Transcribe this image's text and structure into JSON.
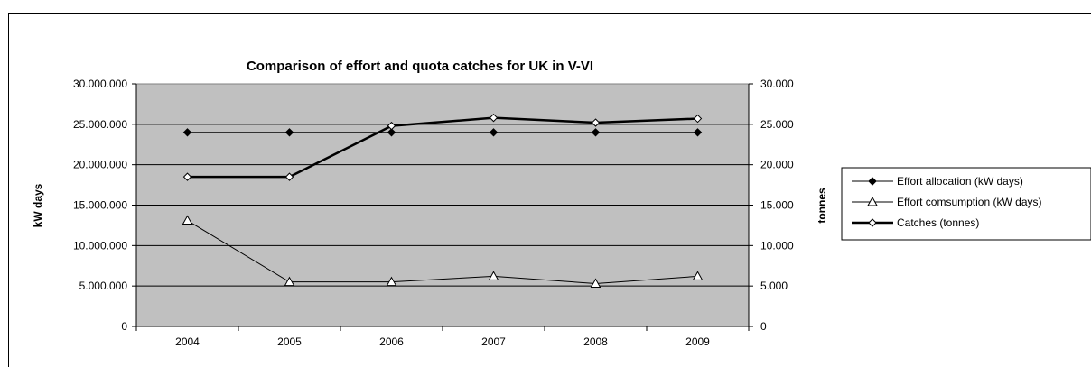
{
  "chart_data": {
    "type": "line",
    "title": "Comparison of effort and quota catches for UK in V-VI",
    "categories": [
      "2004",
      "2005",
      "2006",
      "2007",
      "2008",
      "2009"
    ],
    "y_left": {
      "label": "kW days",
      "ylim": [
        0,
        30000000
      ],
      "ticks": [
        "0",
        "5.000.000",
        "10.000.000",
        "15.000.000",
        "20.000.000",
        "25.000.000",
        "30.000.000"
      ]
    },
    "y_right": {
      "label": "tonnes",
      "ylim": [
        0,
        30000
      ],
      "ticks": [
        "0",
        "5.000",
        "10.000",
        "15.000",
        "20.000",
        "25.000",
        "30.000"
      ]
    },
    "grid": true,
    "legend_position": "right",
    "series": [
      {
        "name": "Effort allocation (kW days)",
        "axis": "left",
        "marker": "filled-diamond",
        "line_weight": "thin",
        "values": [
          24000000,
          24000000,
          24000000,
          24000000,
          24000000,
          24000000
        ]
      },
      {
        "name": "Effort comsumption (kW days)",
        "axis": "left",
        "marker": "open-triangle",
        "line_weight": "thin",
        "values": [
          13100000,
          5500000,
          5500000,
          6200000,
          5300000,
          6200000
        ]
      },
      {
        "name": "Catches (tonnes)",
        "axis": "right",
        "marker": "open-diamond",
        "line_weight": "thick",
        "values": [
          18500,
          18500,
          24800,
          25800,
          25200,
          25700
        ]
      }
    ],
    "colors": {
      "plot_background": "#C0C0C0",
      "line": "#000000",
      "marker_fill_open": "#FFFFFF"
    }
  }
}
